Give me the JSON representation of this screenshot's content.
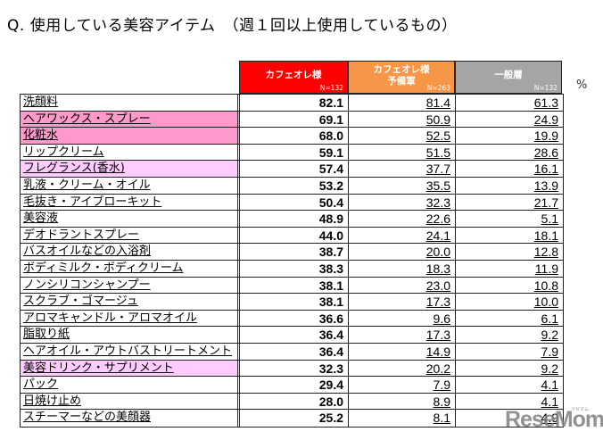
{
  "title": "Q.  使用している美容アイテム　（週１回以上使用しているもの）",
  "unit": "%",
  "columns": [
    {
      "name": "カフェオレ様",
      "name_line2": "",
      "n": "N=132",
      "color": "#fe0000"
    },
    {
      "name": "カフェオレ様",
      "name_line2": "予備軍",
      "n": "N=263",
      "color": "#f79646"
    },
    {
      "name": "一般層",
      "name_line2": "",
      "n": "N=132",
      "color": "#a5a5a5"
    }
  ],
  "highlight_colors": {
    "strong": "#ff99cc",
    "light": "#ffccff"
  },
  "rows": [
    {
      "label": "洗顔料",
      "values": [
        "82.1",
        "81.4",
        "61.3"
      ],
      "highlight": "none"
    },
    {
      "label": "ヘアワックス・スプレー",
      "values": [
        "69.1",
        "50.9",
        "24.9"
      ],
      "highlight": "strong"
    },
    {
      "label": "化粧水",
      "values": [
        "68.0",
        "52.5",
        "19.9"
      ],
      "highlight": "strong"
    },
    {
      "label": "リップクリーム",
      "values": [
        "59.1",
        "51.5",
        "28.6"
      ],
      "highlight": "none"
    },
    {
      "label": "フレグランス(香水)",
      "values": [
        "57.4",
        "37.7",
        "16.1"
      ],
      "highlight": "light"
    },
    {
      "label": "乳液・クリーム・オイル",
      "values": [
        "53.2",
        "35.5",
        "13.9"
      ],
      "highlight": "none"
    },
    {
      "label": "毛抜き・アイブローキット",
      "values": [
        "50.4",
        "32.3",
        "21.7"
      ],
      "highlight": "none"
    },
    {
      "label": "美容液",
      "values": [
        "48.9",
        "22.6",
        "5.1"
      ],
      "highlight": "none"
    },
    {
      "label": "デオドラントスプレー",
      "values": [
        "44.0",
        "24.1",
        "18.1"
      ],
      "highlight": "none"
    },
    {
      "label": "バスオイルなどの入浴剤",
      "values": [
        "38.7",
        "20.0",
        "12.8"
      ],
      "highlight": "none"
    },
    {
      "label": "ボディミルク・ボディクリーム",
      "values": [
        "38.3",
        "18.3",
        "11.9"
      ],
      "highlight": "none"
    },
    {
      "label": "ノンシリコンシャンプー",
      "values": [
        "38.1",
        "23.0",
        "10.8"
      ],
      "highlight": "none"
    },
    {
      "label": "スクラブ・ゴマージュ",
      "values": [
        "38.1",
        "17.3",
        "10.0"
      ],
      "highlight": "none"
    },
    {
      "label": "アロマキャンドル・アロマオイル",
      "values": [
        "36.6",
        "9.6",
        "6.1"
      ],
      "highlight": "none"
    },
    {
      "label": "脂取り紙",
      "values": [
        "36.4",
        "17.3",
        "9.2"
      ],
      "highlight": "none"
    },
    {
      "label": "ヘアオイル・アウトバストリートメント",
      "values": [
        "36.4",
        "14.9",
        "7.9"
      ],
      "highlight": "none"
    },
    {
      "label": "美容ドリンク・サプリメント",
      "values": [
        "32.3",
        "20.2",
        "9.2"
      ],
      "highlight": "light"
    },
    {
      "label": "パック",
      "values": [
        "29.4",
        "7.9",
        "4.1"
      ],
      "highlight": "none"
    },
    {
      "label": "日焼け止め",
      "values": [
        "28.0",
        "8.9",
        "4.1"
      ],
      "highlight": "none"
    },
    {
      "label": "スチーマーなどの美顔器",
      "values": [
        "25.2",
        "8.1",
        "4.9"
      ],
      "highlight": "none"
    }
  ],
  "watermark": {
    "text": "ReseMom",
    "sub": "リセマム"
  },
  "chart_data": {
    "type": "table",
    "title": "Q. 使用している美容アイテム（週１回以上使用しているもの）",
    "unit": "%",
    "categories": [
      "洗顔料",
      "ヘアワックス・スプレー",
      "化粧水",
      "リップクリーム",
      "フレグランス(香水)",
      "乳液・クリーム・オイル",
      "毛抜き・アイブローキット",
      "美容液",
      "デオドラントスプレー",
      "バスオイルなどの入浴剤",
      "ボディミルク・ボディクリーム",
      "ノンシリコンシャンプー",
      "スクラブ・ゴマージュ",
      "アロマキャンドル・アロマオイル",
      "脂取り紙",
      "ヘアオイル・アウトバストリートメント",
      "美容ドリンク・サプリメント",
      "パック",
      "日焼け止め",
      "スチーマーなどの美顔器"
    ],
    "series": [
      {
        "name": "カフェオレ様 (N=132)",
        "values": [
          82.1,
          69.1,
          68.0,
          59.1,
          57.4,
          53.2,
          50.4,
          48.9,
          44.0,
          38.7,
          38.3,
          38.1,
          38.1,
          36.6,
          36.4,
          36.4,
          32.3,
          29.4,
          28.0,
          25.2
        ]
      },
      {
        "name": "カフェオレ様予備軍 (N=263)",
        "values": [
          81.4,
          50.9,
          52.5,
          51.5,
          37.7,
          35.5,
          32.3,
          22.6,
          24.1,
          20.0,
          18.3,
          23.0,
          17.3,
          9.6,
          17.3,
          14.9,
          20.2,
          7.9,
          8.9,
          8.1
        ]
      },
      {
        "name": "一般層 (N=132)",
        "values": [
          61.3,
          24.9,
          19.9,
          28.6,
          16.1,
          13.9,
          21.7,
          5.1,
          18.1,
          12.8,
          11.9,
          10.8,
          10.0,
          6.1,
          9.2,
          7.9,
          9.2,
          4.1,
          4.1,
          4.9
        ]
      }
    ]
  }
}
